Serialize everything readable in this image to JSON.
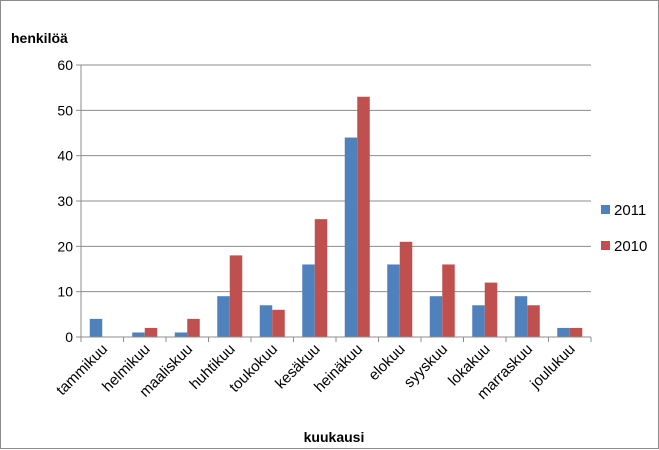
{
  "chart_data": {
    "type": "bar",
    "ylabel": "henkilöä",
    "xlabel": "kuukausi",
    "ylim": [
      0,
      60
    ],
    "yticks": [
      0,
      10,
      20,
      30,
      40,
      50,
      60
    ],
    "grid": true,
    "legend_position": "right",
    "categories": [
      "tammikuu",
      "helmikuu",
      "maaliskuu",
      "huhtikuu",
      "toukokuu",
      "kesäkuu",
      "heinäkuu",
      "elokuu",
      "syyskuu",
      "lokakuu",
      "marraskuu",
      "joulukuu"
    ],
    "series": [
      {
        "name": "2011",
        "color": "#4f81bd",
        "values": [
          4,
          1,
          1,
          9,
          7,
          16,
          44,
          16,
          9,
          7,
          9,
          2
        ]
      },
      {
        "name": "2010",
        "color": "#c0504d",
        "values": [
          0,
          2,
          4,
          18,
          6,
          26,
          53,
          21,
          16,
          12,
          7,
          2
        ]
      }
    ]
  }
}
